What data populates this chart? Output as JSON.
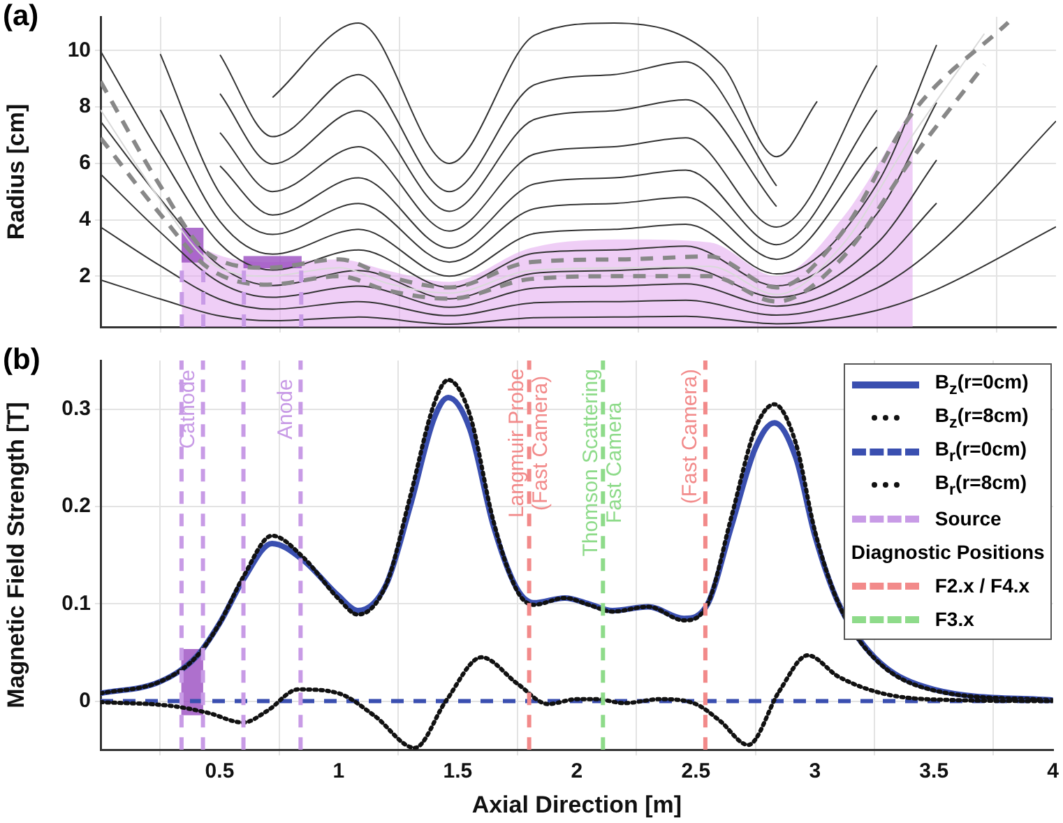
{
  "chart_data": [
    {
      "type": "line",
      "title": "(a)",
      "ylabel": "Radius [cm]",
      "xlim": [
        0,
        4
      ],
      "xticks": [
        0.5,
        1,
        1.5,
        2,
        2.5,
        3,
        3.5,
        4
      ],
      "ylim": [
        0.2,
        11.2
      ],
      "yticks": [
        2,
        4,
        6,
        8,
        10
      ],
      "tick_labels": "y",
      "grid": true,
      "legend": false,
      "marker": "none",
      "x": [
        0,
        0.25,
        0.5,
        0.72,
        1.08,
        1.46,
        1.82,
        2.15,
        2.45,
        2.83,
        3.25,
        3.5,
        4
      ],
      "series": [
        {
          "type": "area",
          "color": "#e2a6ee",
          "x": [
            0.34,
            0.45,
            0.7,
            1,
            1.2,
            1.46,
            1.8,
            2.2,
            2.55,
            2.83,
            3.1,
            3.4
          ],
          "values": [
            3.6,
            2.9,
            2.5,
            2.6,
            2.2,
            1.8,
            3,
            3.3,
            3.2,
            2,
            4,
            8
          ]
        },
        {
          "type": "bar",
          "color": "#9a4cc0",
          "x": [
            0.385,
            0.72
          ],
          "values": [
            1.2,
            0.4
          ],
          "base": [
            2.5,
            2.3
          ]
        },
        {
          "color": "#333333",
          "values": [
            1.87,
            1.19,
            0.59,
            0.42,
            0.55,
            0.3,
            0.53,
            0.55,
            0.58,
            0.31,
            0.79,
            1.53,
            3.75
          ]
        },
        {
          "color": "#333333",
          "values": [
            3.74,
            2.37,
            1.18,
            0.83,
            1.1,
            0.6,
            1.06,
            1.1,
            1.15,
            0.62,
            1.58,
            3.06,
            7.5
          ]
        },
        {
          "color": "#333333",
          "values": [
            5.62,
            3.56,
            1.77,
            1.25,
            1.65,
            0.9,
            1.58,
            1.65,
            1.73,
            0.94,
            2.37,
            4.59,
            null
          ]
        },
        {
          "color": "#333333",
          "values": [
            7.49,
            4.74,
            2.36,
            1.67,
            2.2,
            1.2,
            2.11,
            2.2,
            2.3,
            1.25,
            3.16,
            6.12,
            null
          ]
        },
        {
          "color": "#333333",
          "values": [
            9.98,
            6.32,
            3.15,
            2.22,
            2.93,
            1.6,
            2.82,
            2.93,
            3.07,
            1.66,
            4.21,
            8.16,
            null
          ]
        },
        {
          "color": "#333333",
          "values": [
            null,
            7.9,
            3.94,
            2.78,
            3.66,
            2,
            3.52,
            3.66,
            3.84,
            2.08,
            5.26,
            10.2,
            null
          ]
        },
        {
          "color": "#333333",
          "values": [
            null,
            9.88,
            4.93,
            3.48,
            4.58,
            2.5,
            4.4,
            4.58,
            4.8,
            2.6,
            6.58,
            null,
            null
          ]
        },
        {
          "color": "#333333",
          "values": [
            null,
            null,
            5.91,
            4.17,
            5.49,
            3,
            5.28,
            5.49,
            5.76,
            3.12,
            7.89,
            null,
            null
          ]
        },
        {
          "color": "#333333",
          "values": [
            null,
            null,
            7.09,
            5,
            6.59,
            3.6,
            6.34,
            6.59,
            6.91,
            3.74,
            9.47,
            null,
            null
          ]
        },
        {
          "color": "#333333",
          "values": [
            null,
            null,
            8.47,
            5.98,
            7.87,
            4.3,
            7.57,
            7.87,
            8.26,
            4.47,
            null,
            null,
            null
          ]
        },
        {
          "color": "#333333",
          "values": [
            null,
            null,
            9.85,
            6.95,
            9.15,
            5,
            8.8,
            9.15,
            9.6,
            5.2,
            null,
            null,
            null
          ]
        },
        {
          "color": "#333333",
          "x": [
            0.72,
            1.08,
            1.46,
            1.82,
            2.15,
            2.6,
            2.83,
            3
          ],
          "values": [
            8.34,
            10.98,
            6,
            10.56,
            10.98,
            9.5,
            6.24,
            8.2
          ]
        },
        {
          "color": "#d9d9d9",
          "x": [
            0,
            0.25,
            0.45,
            0.7,
            1,
            1.2,
            1.46,
            1.8,
            2.2,
            2.55,
            2.83,
            3.1,
            3.4,
            3.7
          ],
          "values": [
            7.9,
            4.7,
            2.55,
            2,
            2.3,
            1.75,
            1.4,
            2.2,
            2.3,
            2.35,
            1.35,
            3.05,
            7,
            10.6
          ]
        },
        {
          "color": "#888888",
          "line_style": "dashed",
          "x": [
            0,
            0.25,
            0.45,
            0.7,
            1,
            1.2,
            1.46,
            1.8,
            2.2,
            2.55,
            2.83,
            3.1,
            3.4,
            3.8
          ],
          "values": [
            8.9,
            5.2,
            2.8,
            2.3,
            2.6,
            2,
            1.6,
            2.5,
            2.6,
            2.7,
            1.6,
            3.5,
            7.8,
            11
          ]
        },
        {
          "color": "#888888",
          "line_style": "dashed",
          "x": [
            0,
            0.25,
            0.45,
            0.7,
            1,
            1.2,
            1.46,
            1.8,
            2.2,
            2.55,
            2.83,
            3.1,
            3.4,
            3.7
          ],
          "values": [
            6.9,
            4.2,
            2.3,
            1.7,
            2,
            1.5,
            1.2,
            1.9,
            2,
            2,
            1.1,
            2.6,
            6.2,
            9.5
          ]
        },
        {
          "color": "#c89be6",
          "line_style": "dashed",
          "x": [
            0.34,
            0.34
          ],
          "values": [
            0.2,
            2.2
          ]
        },
        {
          "color": "#c89be6",
          "line_style": "dashed",
          "x": [
            0.43,
            0.43
          ],
          "values": [
            0.2,
            2.2
          ]
        },
        {
          "color": "#c89be6",
          "line_style": "dashed",
          "x": [
            0.6,
            0.6
          ],
          "values": [
            0.2,
            2.2
          ]
        },
        {
          "color": "#c89be6",
          "line_style": "dashed",
          "x": [
            0.84,
            0.84
          ],
          "values": [
            0.2,
            2.2
          ]
        }
      ]
    },
    {
      "type": "line",
      "title": "(b)",
      "xlabel": "Axial Direction [m]",
      "ylabel": "Magnetic Field Strength [T]",
      "xlim": [
        0,
        4
      ],
      "xticks": [
        0.5,
        1,
        1.5,
        2,
        2.5,
        3,
        3.5,
        4
      ],
      "ylim": [
        -0.05,
        0.35
      ],
      "yticks": [
        0,
        0.1,
        0.2,
        0.3
      ],
      "grid": true,
      "legend": "top right",
      "legend_title": "Diagnostic Positions",
      "marker": "none",
      "annotations": [
        {
          "text": "Cathode",
          "x": 0.43,
          "y": 0.3
        },
        {
          "text": "Anode",
          "x": 0.84,
          "y": 0.3
        },
        {
          "text": "Langmuir Probe\n(Fast Camera)",
          "x": 1.8,
          "y": 0.265
        },
        {
          "text": "Thomson Scattering\nFast Camera",
          "x": 2.11,
          "y": 0.245
        },
        {
          "text": "(Fast Camera)",
          "x": 2.54,
          "y": 0.272
        }
      ],
      "series": [
        {
          "type": "bar",
          "color": "#9a4cc0",
          "x": [
            0.385
          ],
          "values": [
            0.067
          ],
          "base": [
            -0.014
          ]
        },
        {
          "name": "B$_{z}$(r=0cm)",
          "color": "#3a4fb0",
          "x": [
            0,
            0.25,
            0.4,
            0.5,
            0.6,
            0.72,
            0.85,
            1,
            1.08,
            1.2,
            1.3,
            1.4,
            1.46,
            1.55,
            1.65,
            1.75,
            1.82,
            1.95,
            2.05,
            2.15,
            2.3,
            2.45,
            2.55,
            2.65,
            2.75,
            2.83,
            2.92,
            3,
            3.1,
            3.25,
            3.5,
            4
          ],
          "values": [
            0.008,
            0.02,
            0.045,
            0.08,
            0.125,
            0.162,
            0.145,
            0.108,
            0.093,
            0.12,
            0.2,
            0.29,
            0.312,
            0.28,
            0.18,
            0.115,
            0.101,
            0.106,
            0.1,
            0.093,
            0.097,
            0.085,
            0.1,
            0.18,
            0.26,
            0.286,
            0.25,
            0.17,
            0.1,
            0.045,
            0.012,
            0.001
          ]
        },
        {
          "name": "B$_{z}$(r=8cm)",
          "color": "#111111",
          "line_style": "dotted",
          "x": [
            0,
            0.25,
            0.4,
            0.5,
            0.6,
            0.72,
            0.85,
            1,
            1.08,
            1.2,
            1.3,
            1.4,
            1.46,
            1.55,
            1.65,
            1.75,
            1.82,
            1.95,
            2.05,
            2.15,
            2.3,
            2.45,
            2.55,
            2.65,
            2.75,
            2.83,
            2.92,
            3,
            3.1,
            3.25,
            3.5,
            4
          ],
          "values": [
            0.008,
            0.02,
            0.045,
            0.08,
            0.128,
            0.17,
            0.148,
            0.105,
            0.089,
            0.12,
            0.21,
            0.305,
            0.33,
            0.295,
            0.185,
            0.113,
            0.099,
            0.106,
            0.099,
            0.092,
            0.097,
            0.083,
            0.1,
            0.19,
            0.28,
            0.305,
            0.265,
            0.175,
            0.1,
            0.044,
            0.011,
            0.001
          ]
        },
        {
          "name": "B$_{r}$(r=0cm)",
          "color": "#3a4fb0",
          "line_style": "dashed",
          "x": [
            0,
            4
          ],
          "values": [
            0,
            0
          ]
        },
        {
          "name": "B$_{r}$(r=8cm)",
          "color": "#111111",
          "line_style": "dotted",
          "x": [
            0,
            0.3,
            0.45,
            0.6,
            0.7,
            0.83,
            1,
            1.15,
            1.32,
            1.45,
            1.6,
            1.75,
            1.88,
            2,
            2.08,
            2.2,
            2.35,
            2.5,
            2.6,
            2.72,
            2.85,
            2.97,
            3.1,
            3.3,
            3.6,
            4
          ],
          "values": [
            -0.001,
            -0.005,
            -0.012,
            -0.022,
            -0.01,
            0.012,
            0.008,
            -0.015,
            -0.048,
            0,
            0.045,
            0.018,
            -0.003,
            0.002,
            0.002,
            -0.002,
            0.002,
            -0.003,
            -0.02,
            -0.045,
            0.01,
            0.047,
            0.025,
            0.007,
            0.001,
            0
          ]
        },
        {
          "name": "Source",
          "color": "#c89be6",
          "line_style": "dashed",
          "x": [
            0.34,
            0.34
          ],
          "values": [
            -0.05,
            0.35
          ]
        },
        {
          "color": "#c89be6",
          "line_style": "dashed",
          "x": [
            0.43,
            0.43
          ],
          "values": [
            -0.05,
            0.35
          ]
        },
        {
          "color": "#c89be6",
          "line_style": "dashed",
          "x": [
            0.6,
            0.6
          ],
          "values": [
            -0.05,
            0.35
          ]
        },
        {
          "color": "#c89be6",
          "line_style": "dashed",
          "x": [
            0.84,
            0.84
          ],
          "values": [
            -0.05,
            0.35
          ]
        },
        {
          "name": "F2.x / F4.x",
          "color": "#f28a8a",
          "line_style": "dashed",
          "x": [
            1.8,
            1.8
          ],
          "values": [
            -0.05,
            0.35
          ]
        },
        {
          "color": "#f28a8a",
          "line_style": "dashed",
          "x": [
            2.54,
            2.54
          ],
          "values": [
            -0.05,
            0.35
          ]
        },
        {
          "name": "F3.x",
          "color": "#8edb8a",
          "line_style": "dashed",
          "x": [
            2.11,
            2.11
          ],
          "values": [
            -0.05,
            0.35
          ]
        }
      ]
    }
  ]
}
